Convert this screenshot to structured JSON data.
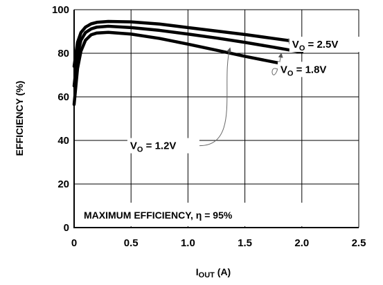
{
  "chart_data": {
    "type": "line",
    "title": "",
    "xlabel": {
      "main": "I",
      "sub": "OUT",
      "unit": " (A)"
    },
    "ylabel": "EFFICIENCY (%)",
    "xlim": [
      0,
      2.5
    ],
    "ylim": [
      0,
      100
    ],
    "xticks": [
      "0",
      "0.5",
      "1.0",
      "1.5",
      "2.0",
      "2.5"
    ],
    "yticks": [
      "0",
      "20",
      "40",
      "60",
      "80",
      "100"
    ],
    "grid": true,
    "series": [
      {
        "name": "VO = 2.5V",
        "label": {
          "main": "V",
          "sub": "O",
          "rest": " = 2.5V"
        },
        "x": [
          0.0,
          0.03,
          0.06,
          0.1,
          0.15,
          0.2,
          0.3,
          0.5,
          0.75,
          1.0,
          1.25,
          1.5,
          1.75,
          2.0
        ],
        "y": [
          74,
          85,
          89.5,
          92,
          93.5,
          94.2,
          94.6,
          94.4,
          93.4,
          91.8,
          90.2,
          88.6,
          86.8,
          85
        ]
      },
      {
        "name": "VO = 1.8V",
        "label": {
          "main": "V",
          "sub": "O",
          "rest": " = 1.8V"
        },
        "x": [
          0.0,
          0.03,
          0.06,
          0.1,
          0.15,
          0.2,
          0.3,
          0.5,
          0.75,
          1.0,
          1.25,
          1.5,
          1.75,
          2.0
        ],
        "y": [
          65,
          79.5,
          86,
          89.5,
          91.2,
          92,
          92.4,
          91.8,
          90.5,
          88.8,
          87,
          85,
          82.8,
          80.5
        ]
      },
      {
        "name": "VO = 1.2V",
        "label": {
          "main": "V",
          "sub": "O",
          "rest": " = 1.2V"
        },
        "x": [
          0.0,
          0.03,
          0.06,
          0.1,
          0.15,
          0.2,
          0.3,
          0.5,
          0.75,
          1.0,
          1.25,
          1.5,
          1.75,
          2.0
        ],
        "y": [
          56.5,
          73,
          81,
          86,
          88.5,
          89.3,
          89.6,
          88.8,
          86.8,
          84.2,
          81.4,
          78.6,
          76,
          73.5
        ]
      }
    ],
    "callouts": [
      {
        "series": 2,
        "label_x": 0.48,
        "label_y": 36,
        "arrow_to": [
          1.37,
          82.5
        ]
      },
      {
        "series": 0,
        "label_x": 2.0,
        "label_y": 82.5,
        "arrow_to": [
          1.99,
          86
        ]
      },
      {
        "series": 1,
        "label_x": 1.8,
        "label_y": 71,
        "arrow_to": [
          1.82,
          80
        ]
      }
    ],
    "annotation": "MAXIMUM EFFICIENCY, η = 95%"
  },
  "colors": {
    "line": "#000000",
    "arrow": "#666666",
    "background": "#ffffff"
  }
}
